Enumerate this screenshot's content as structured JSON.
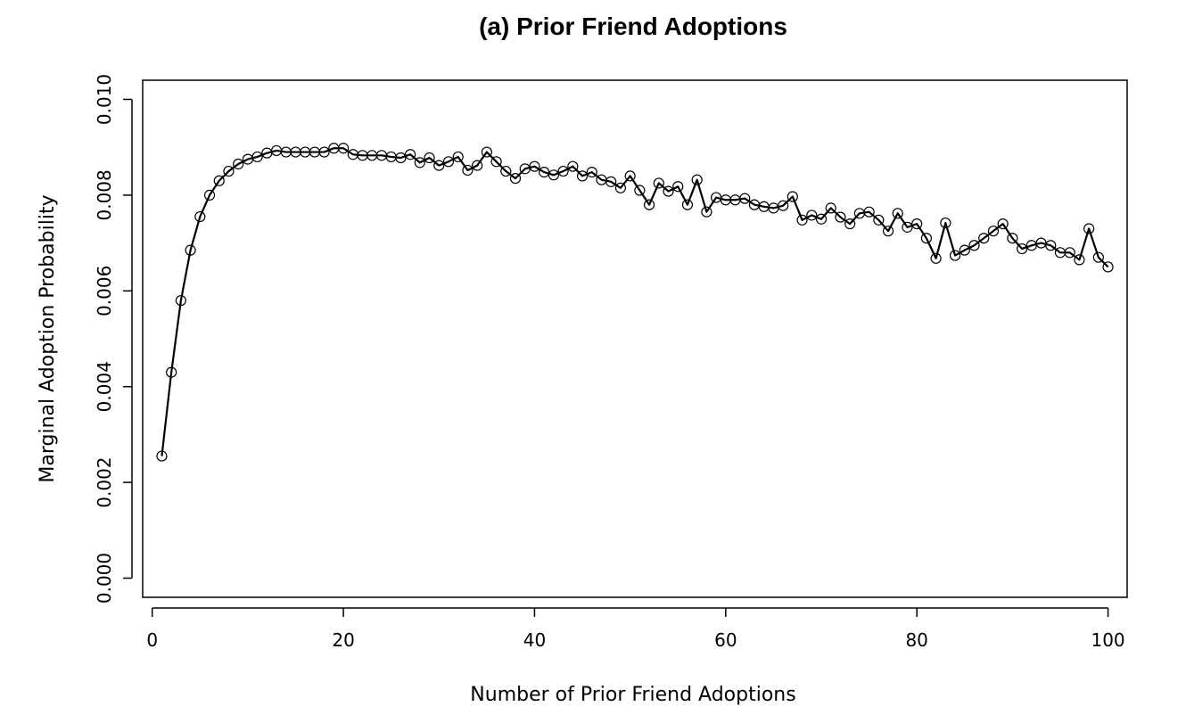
{
  "chart_data": {
    "type": "line",
    "title": "(a) Prior Friend Adoptions",
    "xlabel": "Number of Prior Friend Adoptions",
    "ylabel": "Marginal Adoption Probability",
    "xlim": [
      -1,
      102
    ],
    "ylim": [
      -0.0004,
      0.0104
    ],
    "xticks": [
      0,
      20,
      40,
      60,
      80,
      100
    ],
    "xtick_labels": [
      "0",
      "20",
      "40",
      "60",
      "80",
      "100"
    ],
    "yticks": [
      0.0,
      0.002,
      0.004,
      0.006,
      0.008,
      0.01
    ],
    "ytick_labels": [
      "0.000",
      "0.002",
      "0.004",
      "0.006",
      "0.008",
      "0.010"
    ],
    "grid": false,
    "marker": "open-circle",
    "x": [
      1,
      2,
      3,
      4,
      5,
      6,
      7,
      8,
      9,
      10,
      11,
      12,
      13,
      14,
      15,
      16,
      17,
      18,
      19,
      20,
      21,
      22,
      23,
      24,
      25,
      26,
      27,
      28,
      29,
      30,
      31,
      32,
      33,
      34,
      35,
      36,
      37,
      38,
      39,
      40,
      41,
      42,
      43,
      44,
      45,
      46,
      47,
      48,
      49,
      50,
      51,
      52,
      53,
      54,
      55,
      56,
      57,
      58,
      59,
      60,
      61,
      62,
      63,
      64,
      65,
      66,
      67,
      68,
      69,
      70,
      71,
      72,
      73,
      74,
      75,
      76,
      77,
      78,
      79,
      80,
      81,
      82,
      83,
      84,
      85,
      86,
      87,
      88,
      89,
      90,
      91,
      92,
      93,
      94,
      95,
      96,
      97,
      98,
      99,
      100
    ],
    "y": [
      0.00255,
      0.0043,
      0.0058,
      0.00685,
      0.00755,
      0.008,
      0.0083,
      0.0085,
      0.00865,
      0.00875,
      0.0088,
      0.00888,
      0.00893,
      0.0089,
      0.0089,
      0.0089,
      0.0089,
      0.0089,
      0.00898,
      0.00898,
      0.00885,
      0.00883,
      0.00883,
      0.00883,
      0.0088,
      0.00878,
      0.00885,
      0.00868,
      0.00878,
      0.00862,
      0.0087,
      0.0088,
      0.00852,
      0.00862,
      0.0089,
      0.0087,
      0.0085,
      0.00835,
      0.00855,
      0.0086,
      0.00848,
      0.00842,
      0.0085,
      0.0086,
      0.0084,
      0.00848,
      0.00832,
      0.00828,
      0.00815,
      0.0084,
      0.0081,
      0.0078,
      0.00825,
      0.00808,
      0.00818,
      0.0078,
      0.00832,
      0.00765,
      0.00795,
      0.0079,
      0.0079,
      0.00793,
      0.0078,
      0.00776,
      0.00773,
      0.00778,
      0.00797,
      0.00748,
      0.00758,
      0.0075,
      0.00773,
      0.00754,
      0.0074,
      0.00762,
      0.00765,
      0.00748,
      0.00725,
      0.00762,
      0.00733,
      0.0074,
      0.0071,
      0.00668,
      0.00742,
      0.00674,
      0.00685,
      0.00695,
      0.0071,
      0.00725,
      0.0074,
      0.0071,
      0.00688,
      0.00695,
      0.007,
      0.00695,
      0.0068,
      0.0068,
      0.00665,
      0.0073,
      0.0067,
      0.0065
    ]
  }
}
